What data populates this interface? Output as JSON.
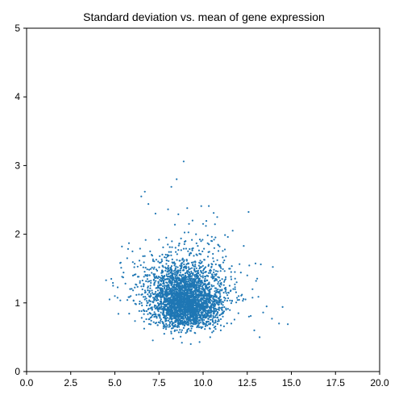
{
  "chart_data": {
    "type": "scatter",
    "title": "Standard deviation vs. mean of gene expression",
    "xlabel": "",
    "ylabel": "",
    "xlim": [
      0,
      20
    ],
    "ylim": [
      0,
      5
    ],
    "x_ticks": [
      "0.0",
      "2.5",
      "5.0",
      "7.5",
      "10.0",
      "12.5",
      "15.0",
      "17.5",
      "20.0"
    ],
    "y_ticks": [
      "0",
      "1",
      "2",
      "3",
      "4",
      "5"
    ],
    "grid": false,
    "legend": "none",
    "point_color": "#1f77b4",
    "series": [
      {
        "points": [
          [
            8.9,
            3.06
          ],
          [
            8.5,
            2.8
          ],
          [
            6.7,
            2.62
          ],
          [
            6.5,
            2.55
          ],
          [
            8.2,
            2.69
          ],
          [
            9.1,
            2.38
          ],
          [
            7.3,
            2.3
          ],
          [
            8.6,
            2.29
          ],
          [
            9.4,
            2.2
          ],
          [
            10.6,
            2.31
          ],
          [
            8.4,
            2.14
          ],
          [
            9.2,
            2.15
          ],
          [
            10.0,
            2.15
          ],
          [
            10.8,
            2.25
          ],
          [
            6.9,
            2.44
          ],
          [
            5.8,
            1.87
          ],
          [
            5.4,
            1.82
          ],
          [
            11.4,
            1.96
          ],
          [
            12.3,
            1.83
          ],
          [
            4.8,
            1.35
          ],
          [
            4.5,
            1.33
          ],
          [
            5.0,
            1.1
          ],
          [
            4.7,
            1.05
          ],
          [
            5.2,
            0.84
          ],
          [
            13.0,
            1.32
          ],
          [
            12.8,
            1.2
          ],
          [
            13.6,
            0.95
          ],
          [
            14.5,
            0.94
          ],
          [
            14.3,
            0.7
          ],
          [
            14.8,
            0.69
          ],
          [
            13.9,
            0.77
          ],
          [
            13.2,
            0.5
          ],
          [
            12.6,
            0.8
          ],
          [
            12.4,
            1.05
          ],
          [
            11.8,
            1.45
          ],
          [
            11.2,
            1.62
          ],
          [
            6.1,
            1.52
          ],
          [
            6.3,
            1.38
          ],
          [
            6.6,
            1.68
          ],
          [
            7.0,
            1.75
          ],
          [
            7.5,
            1.92
          ],
          [
            8.0,
            1.85
          ],
          [
            9.7,
            1.83
          ],
          [
            10.3,
            1.74
          ],
          [
            10.9,
            1.55
          ],
          [
            5.6,
            1.28
          ],
          [
            5.9,
            1.1
          ],
          [
            6.2,
            0.98
          ],
          [
            6.8,
            0.88
          ],
          [
            7.2,
            0.72
          ],
          [
            7.8,
            0.55
          ],
          [
            8.3,
            0.48
          ],
          [
            8.8,
            0.42
          ],
          [
            9.3,
            0.4
          ],
          [
            9.8,
            0.43
          ],
          [
            10.4,
            0.5
          ],
          [
            11.0,
            0.6
          ],
          [
            11.6,
            0.7
          ],
          [
            12.0,
            0.85
          ],
          [
            12.2,
            1.12
          ],
          [
            11.5,
            1.25
          ],
          [
            10.7,
            1.35
          ],
          [
            9.9,
            1.45
          ],
          [
            9.0,
            1.52
          ],
          [
            8.1,
            1.47
          ],
          [
            7.6,
            1.32
          ],
          [
            7.1,
            1.18
          ],
          [
            6.7,
            1.05
          ],
          [
            7.4,
            0.92
          ],
          [
            8.7,
            0.75
          ],
          [
            9.5,
            0.82
          ],
          [
            10.2,
            0.95
          ],
          [
            10.9,
            1.02
          ],
          [
            8.0,
            1.12
          ],
          [
            9.2,
            1.25
          ],
          [
            7.9,
            0.62
          ],
          [
            10.1,
            0.62
          ],
          [
            8.6,
            0.68
          ],
          [
            9.4,
            0.7
          ],
          [
            8.9,
            0.95
          ],
          [
            9.1,
            0.58
          ],
          [
            12.9,
            0.6
          ],
          [
            13.4,
            0.86
          ],
          [
            5.3,
            1.58
          ],
          [
            5.7,
            1.65
          ],
          [
            6.0,
            1.75
          ],
          [
            11.9,
            1.3
          ],
          [
            12.5,
            1.4
          ],
          [
            4.9,
            1.25
          ],
          [
            9.6,
            2.0
          ],
          [
            10.5,
            1.9
          ]
        ]
      }
    ]
  }
}
